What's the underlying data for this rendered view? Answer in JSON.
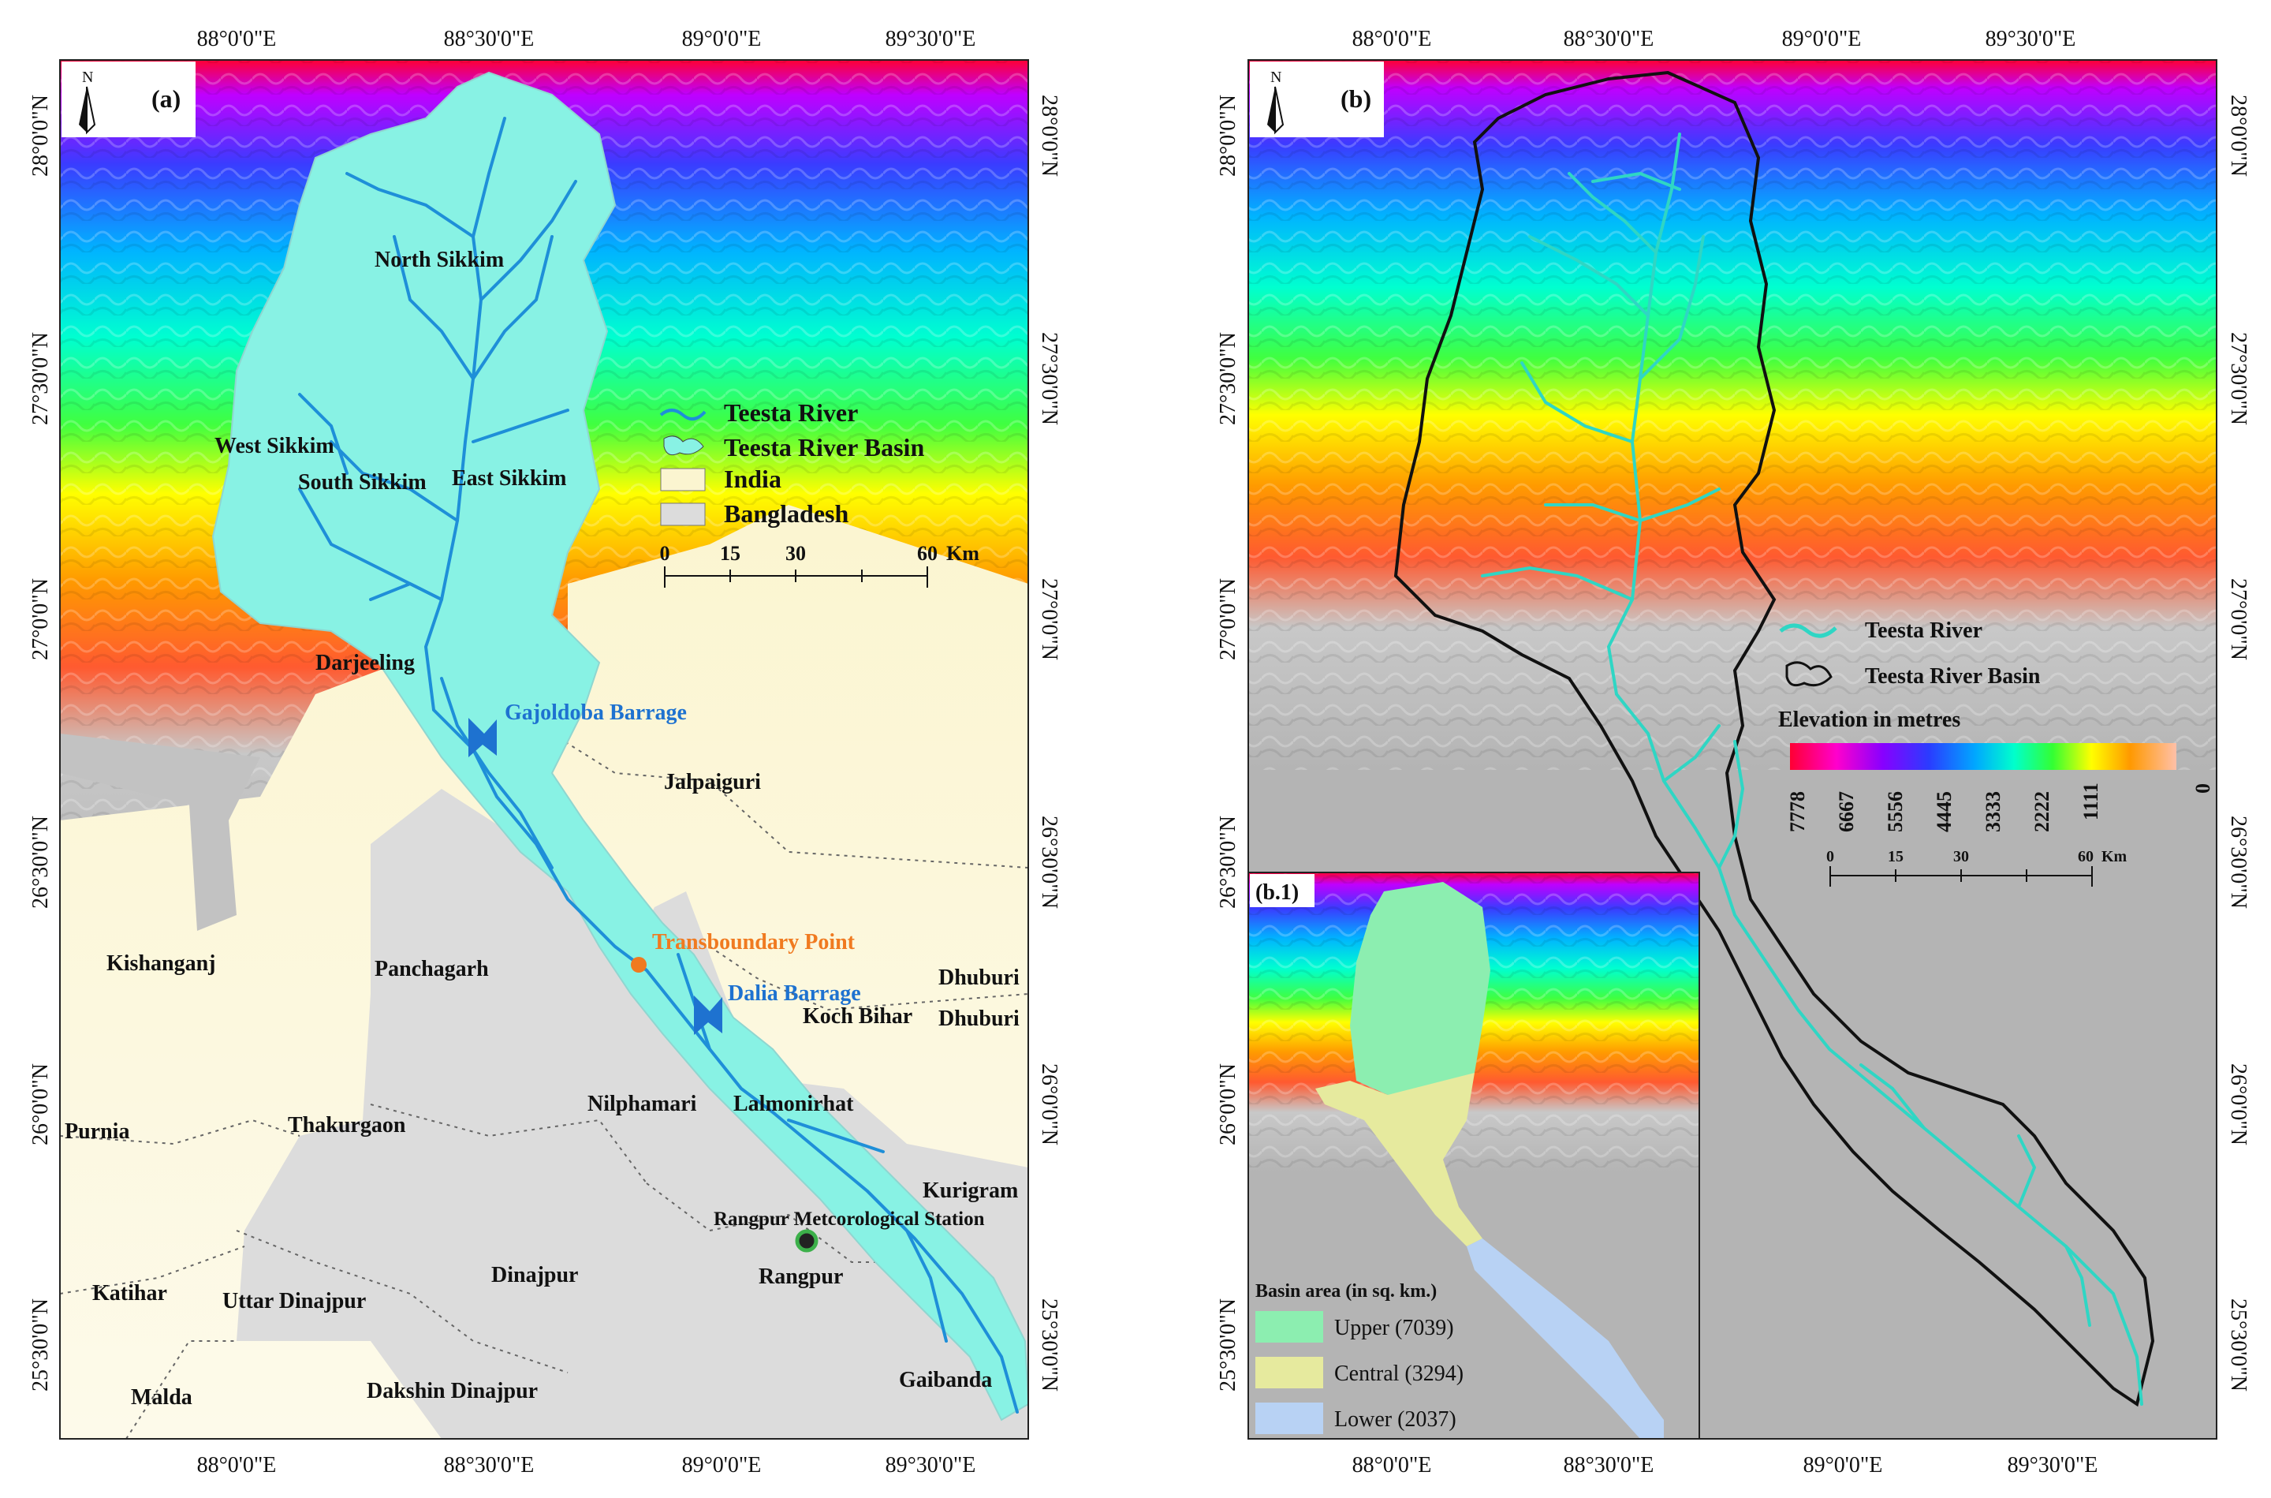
{
  "panel_a": {
    "tag": "(a)",
    "north": "N",
    "top_coords": [
      "88°0'0\"E",
      "88°30'0\"E",
      "89°0'0\"E",
      "89°30'0\"E"
    ],
    "bottom_coords": [
      "88°0'0\"E",
      "88°30'0\"E",
      "89°0'0\"E",
      "89°30'0\"E"
    ],
    "lat_coords": [
      "28°0'0\"N",
      "27°30'0\"N",
      "27°0'0\"N",
      "26°30'0\"N",
      "26°0'0\"N",
      "25°30'0\"N"
    ],
    "districts": {
      "north_sikkim": "North Sikkim",
      "west_sikkim": "West Sikkim",
      "south_sikkim": "South Sikkim",
      "east_sikkim": "East Sikkim",
      "darjeeling": "Darjeeling",
      "jalpaiguri": "Jalpaiguri",
      "kishanganj": "Kishanganj",
      "panchagarh": "Panchagarh",
      "koch_bihar": "Koch Bihar",
      "dhubri_1": "Dhuburi",
      "dhubri_2": "Dhuburi",
      "purnia": "Purnia",
      "thakurgaon": "Thakurgaon",
      "nilphamari": "Nilphamari",
      "lalmonirhat": "Lalmonirhat",
      "kurigram": "Kurigram",
      "dinajpur": "Dinajpur",
      "rangpur": "Rangpur",
      "katihar": "Katihar",
      "uttar_dinajpur": "Uttar Dinajpur",
      "malda": "Malda",
      "dakshin_dinajpur": "Dakshin Dinajpur",
      "gaibanda": "Gaibanda"
    },
    "features": {
      "gajoldoba": "Gajoldoba Barrage",
      "dalia": "Dalia Barrage",
      "transboundary": "Transboundary Point",
      "station": "Rangpur Metcorological Station"
    },
    "legend": {
      "river": "Teesta River",
      "basin": "Teesta River Basin",
      "india": "India",
      "bangladesh": "Bangladesh"
    },
    "scale": {
      "ticks": [
        "0",
        "15",
        "30",
        "60"
      ],
      "unit": "Km"
    }
  },
  "panel_b": {
    "tag": "(b)",
    "north": "N",
    "top_coords": [
      "88°0'0\"E",
      "88°30'0\"E",
      "89°0'0\"E",
      "89°30'0\"E"
    ],
    "bottom_coords": [
      "89°0'0\"E",
      "89°30'0\"E"
    ],
    "lat_coords": [
      "28°0'0\"N",
      "27°30'0\"N",
      "27°0'0\"N",
      "26°30'0\"N",
      "26°0'0\"N",
      "25°30'0\"N"
    ],
    "legend": {
      "river": "Teesta River",
      "basin": "Teesta River Basin",
      "elevation_title": "Elevation in metres",
      "elevation_ticks": [
        "7778",
        "6667",
        "5556",
        "4445",
        "3333",
        "2222",
        "1111",
        "0"
      ]
    },
    "scale": {
      "ticks": [
        "0",
        "15",
        "30",
        "60"
      ],
      "unit": "Km"
    },
    "elevation_colors": [
      "#ff0033",
      "#ff00cc",
      "#8800ff",
      "#2a3cff",
      "#00a8ff",
      "#00ffcc",
      "#33ff33",
      "#ffff00",
      "#ff9900",
      "#ff6633",
      "#b4b4b4"
    ]
  },
  "inset_b1": {
    "tag": "(b.1)",
    "lat_coords": [
      "26°30'0\"N",
      "26°0'0\"N",
      "25°30'0\"N"
    ],
    "bottom_coords": [
      "88°0'0\"E",
      "88°30'0\"E"
    ],
    "legend_title": "Basin area (in sq. km.)",
    "classes": [
      {
        "label": "Upper (7039)",
        "color": "#8ceeb0",
        "area_sq_km": 7039
      },
      {
        "label": "Central (3294)",
        "color": "#e6ea9e",
        "area_sq_km": 3294
      },
      {
        "label": "Lower (2037)",
        "color": "#b8d2f4",
        "area_sq_km": 2037
      }
    ]
  },
  "colors": {
    "basin_fill": "#88f2e4",
    "river": "#1e8fd8",
    "river_b": "#2fd6c4",
    "india": "#fbf6dc",
    "bangladesh": "#dcdcdc",
    "barrage": "#1e72d0",
    "transboundary": "#f07a20",
    "label_blue": "#1e72d0",
    "label_orange": "#f07a20"
  }
}
